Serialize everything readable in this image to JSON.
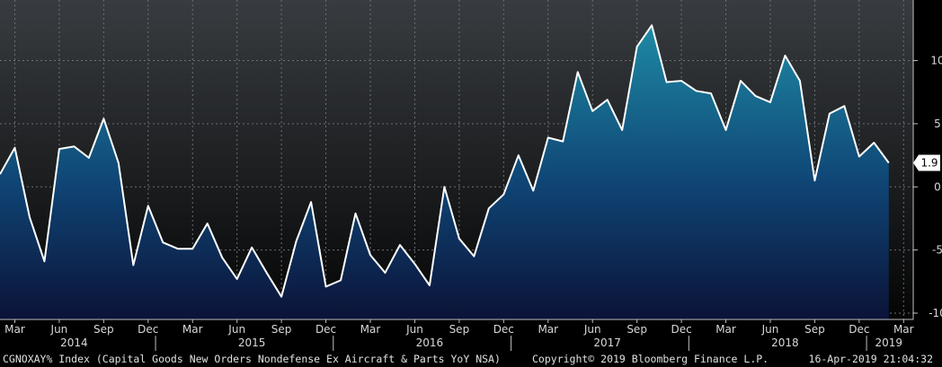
{
  "chart_data": {
    "type": "area",
    "title": "",
    "xlabel": "",
    "ylabel": "",
    "x": [
      "2014-02",
      "2014-03",
      "2014-04",
      "2014-05",
      "2014-06",
      "2014-07",
      "2014-08",
      "2014-09",
      "2014-10",
      "2014-11",
      "2014-12",
      "2015-01",
      "2015-02",
      "2015-03",
      "2015-04",
      "2015-05",
      "2015-06",
      "2015-07",
      "2015-08",
      "2015-09",
      "2015-10",
      "2015-11",
      "2015-12",
      "2016-01",
      "2016-02",
      "2016-03",
      "2016-04",
      "2016-05",
      "2016-06",
      "2016-07",
      "2016-08",
      "2016-09",
      "2016-10",
      "2016-11",
      "2016-12",
      "2017-01",
      "2017-02",
      "2017-03",
      "2017-04",
      "2017-05",
      "2017-06",
      "2017-07",
      "2017-08",
      "2017-09",
      "2017-10",
      "2017-11",
      "2017-12",
      "2018-01",
      "2018-02",
      "2018-03",
      "2018-04",
      "2018-05",
      "2018-06",
      "2018-07",
      "2018-08",
      "2018-09",
      "2018-10",
      "2018-11",
      "2018-12",
      "2019-01",
      "2019-02"
    ],
    "series": [
      {
        "values": [
          1.0,
          3.1,
          -2.4,
          -5.9,
          3.0,
          3.2,
          2.3,
          5.4,
          1.9,
          -6.2,
          -1.5,
          -4.4,
          -4.9,
          -4.9,
          -2.9,
          -5.6,
          -7.3,
          -4.8,
          -6.8,
          -8.7,
          -4.3,
          -1.2,
          -7.9,
          -7.4,
          -2.1,
          -5.4,
          -6.8,
          -4.6,
          -6.1,
          -7.8,
          0.0,
          -4.1,
          -5.5,
          -1.7,
          -0.6,
          2.5,
          -0.3,
          3.9,
          3.6,
          9.1,
          6.0,
          6.9,
          4.5,
          11.1,
          12.8,
          8.3,
          8.4,
          7.6,
          7.4,
          4.5,
          8.4,
          7.2,
          6.7,
          10.4,
          8.4,
          0.5,
          5.8,
          6.4,
          2.4,
          3.5,
          1.9
        ]
      }
    ],
    "last_value_label": "1.9",
    "ylim": [
      -10.5,
      14.8
    ],
    "y_ticks": [
      "10",
      "5",
      "0",
      "-5",
      "-10"
    ],
    "month_labels": [
      {
        "label": "Mar",
        "x": "2014-03"
      },
      {
        "label": "Jun",
        "x": "2014-06"
      },
      {
        "label": "Sep",
        "x": "2014-09"
      },
      {
        "label": "Dec",
        "x": "2014-12"
      },
      {
        "label": "Mar",
        "x": "2015-03"
      },
      {
        "label": "Jun",
        "x": "2015-06"
      },
      {
        "label": "Sep",
        "x": "2015-09"
      },
      {
        "label": "Dec",
        "x": "2015-12"
      },
      {
        "label": "Mar",
        "x": "2016-03"
      },
      {
        "label": "Jun",
        "x": "2016-06"
      },
      {
        "label": "Sep",
        "x": "2016-09"
      },
      {
        "label": "Dec",
        "x": "2016-12"
      },
      {
        "label": "Mar",
        "x": "2017-03"
      },
      {
        "label": "Jun",
        "x": "2017-06"
      },
      {
        "label": "Sep",
        "x": "2017-09"
      },
      {
        "label": "Dec",
        "x": "2017-12"
      },
      {
        "label": "Mar",
        "x": "2018-03"
      },
      {
        "label": "Jun",
        "x": "2018-06"
      },
      {
        "label": "Sep",
        "x": "2018-09"
      },
      {
        "label": "Dec",
        "x": "2018-12"
      },
      {
        "label": "Mar",
        "x": "2019-03"
      }
    ],
    "year_labels": [
      {
        "label": "2014",
        "x": "2014-07"
      },
      {
        "label": "2015",
        "x": "2015-07"
      },
      {
        "label": "2016",
        "x": "2016-07"
      },
      {
        "label": "2017",
        "x": "2017-07"
      },
      {
        "label": "2018",
        "x": "2018-07"
      },
      {
        "label": "2019",
        "x": "2019-02"
      }
    ],
    "year_separators": [
      "2014-12",
      "2015-12",
      "2016-12",
      "2017-12",
      "2018-12"
    ],
    "grid": true,
    "legend": "none"
  },
  "footer": {
    "left": "CGNOXAY% Index (Capital Goods New Orders Nondefense Ex Aircraft & Parts YoY NSA)",
    "center": "Copyright© 2019 Bloomberg Finance L.P.",
    "right": "16-Apr-2019 21:04:32"
  },
  "colors": {
    "line": "#ffffff",
    "area_top": "#1f8da6",
    "area_mid": "#0f4575",
    "area_bottom": "#0b1338",
    "background_top": "#383c40",
    "background_bottom": "#050505",
    "grid": "#6b7075",
    "label_box": "#ffffff"
  }
}
